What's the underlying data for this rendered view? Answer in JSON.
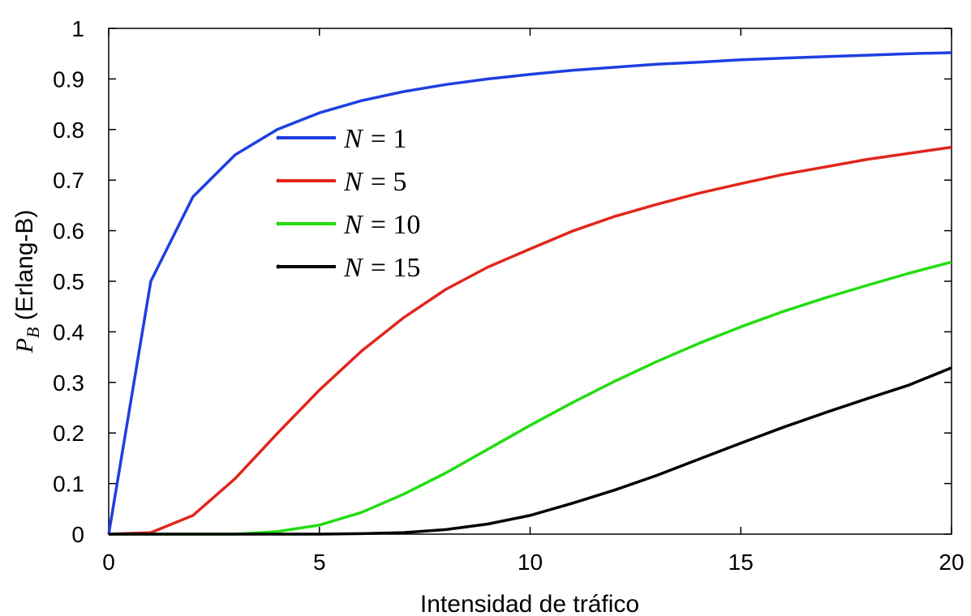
{
  "chart_data": {
    "type": "line",
    "xlabel": "Intensidad de tráfico",
    "ylabel": {
      "symbol": "P",
      "subscript": "B",
      "text": " (Erlang-B)"
    },
    "xlim": [
      0,
      20
    ],
    "ylim": [
      0,
      1
    ],
    "xticks": [
      0,
      5,
      10,
      15,
      20
    ],
    "yticks": [
      0,
      0.1,
      0.2,
      0.3,
      0.4,
      0.5,
      0.6,
      0.7,
      0.8,
      0.9,
      1
    ],
    "ytick_labels": [
      "0",
      "0.1",
      "0.2",
      "0.3",
      "0.4",
      "0.5",
      "0.6",
      "0.7",
      "0.8",
      "0.9",
      "1"
    ],
    "xtick_labels": [
      "0",
      "5",
      "10",
      "15",
      "20"
    ],
    "grid": false,
    "legend_position": "upper-left-inside",
    "x": [
      0,
      1,
      2,
      3,
      4,
      5,
      6,
      7,
      8,
      9,
      10,
      11,
      12,
      13,
      14,
      15,
      16,
      17,
      18,
      19,
      20
    ],
    "series": [
      {
        "name": "N = 1",
        "legend_var": "N",
        "legend_eq": "= 1",
        "color": "#1f3fe0",
        "values": [
          0,
          0.5,
          0.667,
          0.75,
          0.8,
          0.833,
          0.857,
          0.875,
          0.889,
          0.9,
          0.909,
          0.917,
          0.923,
          0.929,
          0.933,
          0.938,
          0.941,
          0.944,
          0.947,
          0.95,
          0.952
        ]
      },
      {
        "name": "N = 5",
        "legend_var": "N",
        "legend_eq": "= 5",
        "color": "#e1261c",
        "values": [
          0,
          0.003,
          0.037,
          0.11,
          0.199,
          0.285,
          0.362,
          0.428,
          0.484,
          0.528,
          0.564,
          0.599,
          0.628,
          0.652,
          0.674,
          0.693,
          0.711,
          0.726,
          0.741,
          0.753,
          0.765
        ]
      },
      {
        "name": "N = 10",
        "legend_var": "N",
        "legend_eq": "= 10",
        "color": "#22dd11",
        "values": [
          0,
          0,
          0,
          0,
          0.005,
          0.018,
          0.043,
          0.079,
          0.121,
          0.168,
          0.215,
          0.26,
          0.302,
          0.341,
          0.377,
          0.41,
          0.44,
          0.467,
          0.492,
          0.516,
          0.538
        ]
      },
      {
        "name": "N = 15",
        "legend_var": "N",
        "legend_eq": "= 15",
        "color": "#000000",
        "values": [
          0,
          0,
          0,
          0,
          0,
          0,
          0.001,
          0.003,
          0.009,
          0.02,
          0.037,
          0.061,
          0.087,
          0.116,
          0.148,
          0.18,
          0.211,
          0.24,
          0.268,
          0.295,
          0.329
        ]
      }
    ]
  }
}
